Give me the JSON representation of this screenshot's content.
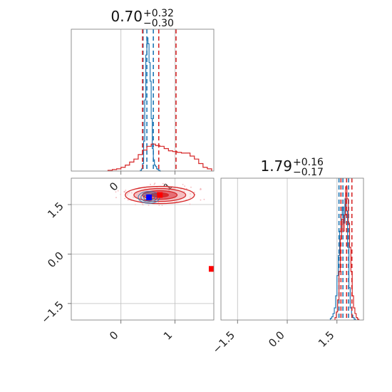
{
  "chart_data": {
    "type": "corner",
    "parameters": [
      "",
      ""
    ],
    "grid": true,
    "colors": {
      "blue": "#1f77b4",
      "red": "#d62728",
      "red_fill": "#e8727a",
      "red_light": "#f4b9bd",
      "marker_blue": "#0000ff",
      "marker_red": "#ff0000"
    },
    "panels": [
      {
        "id": "marginal-param1",
        "type": "histogram",
        "title": {
          "value": "0.70",
          "upper": "+0.32",
          "lower": "−0.30"
        },
        "xlim": [
          -0.92,
          1.72
        ],
        "xticks": [
          0,
          1
        ],
        "series": [
          {
            "name": "blue",
            "color": "#1f77b4",
            "bin_edges": [
              0.36,
              0.38,
              0.4,
              0.42,
              0.44,
              0.46,
              0.48,
              0.5,
              0.52,
              0.54,
              0.56,
              0.58,
              0.6,
              0.62,
              0.64,
              0.66,
              0.68,
              0.7,
              0.72,
              0.74
            ],
            "counts": [
              1,
              3,
              10,
              40,
              95,
              155,
              178,
              170,
              145,
              120,
              70,
              30,
              15,
              8,
              6,
              3,
              2,
              1,
              0
            ],
            "quantiles": [
              0.41,
              0.48,
              0.6
            ]
          },
          {
            "name": "red",
            "color": "#d62728",
            "bin_edges": [
              -0.24,
              -0.16,
              -0.08,
              0.0,
              0.08,
              0.16,
              0.24,
              0.32,
              0.4,
              0.48,
              0.56,
              0.64,
              0.72,
              0.8,
              0.88,
              0.96,
              1.04,
              1.12,
              1.2,
              1.28,
              1.36,
              1.44,
              1.52,
              1.6,
              1.68
            ],
            "counts": [
              1,
              2,
              3,
              5,
              8,
              12,
              16,
              22,
              28,
              33,
              36,
              34,
              33,
              30,
              27,
              26,
              25,
              24,
              24,
              20,
              16,
              10,
              5,
              3
            ],
            "quantiles": [
              0.4,
              0.7,
              1.02
            ]
          }
        ]
      },
      {
        "id": "joint-param1-param2",
        "type": "contour2d",
        "xlim": [
          -0.92,
          1.72
        ],
        "ylim": [
          -2.0,
          2.3
        ],
        "xticks": [
          0,
          1
        ],
        "yticks": [
          -1.5,
          0.0,
          1.5
        ],
        "yticklabels": [
          "−1.5",
          "0.0",
          "1.5"
        ],
        "series": [
          {
            "name": "red",
            "color": "#d62728",
            "center": [
              0.72,
              1.79
            ],
            "sigma": [
              0.32,
              0.13
            ],
            "levels": [
              0.5,
              1.0,
              1.5,
              2.0
            ]
          },
          {
            "name": "blue",
            "color": "#1f77b4",
            "center": [
              0.52,
              1.72
            ],
            "sigma": [
              0.1,
              0.09
            ],
            "levels": [
              0.5,
              1.0,
              1.5,
              2.0
            ]
          }
        ],
        "markers": [
          {
            "name": "marker-blue",
            "x": 0.52,
            "y": 1.72,
            "color": "#0000ff"
          },
          {
            "name": "marker-red",
            "x": 0.72,
            "y": 1.79,
            "color": "#ff0000"
          },
          {
            "name": "marker-red-edge",
            "x": 1.68,
            "y": -0.45,
            "color": "#ff0000"
          }
        ]
      },
      {
        "id": "marginal-param2",
        "type": "histogram",
        "title": {
          "value": "1.79",
          "upper": "+0.16",
          "lower": "−0.17"
        },
        "xlim": [
          -2.0,
          2.3
        ],
        "xticks": [
          -1.5,
          0.0,
          1.5
        ],
        "xticklabels": [
          "−1.5",
          "0.0",
          "1.5"
        ],
        "series": [
          {
            "name": "blue",
            "color": "#1f77b4",
            "bin_edges": [
              1.3,
              1.34,
              1.38,
              1.42,
              1.46,
              1.5,
              1.54,
              1.58,
              1.62,
              1.66,
              1.7,
              1.74,
              1.78,
              1.82,
              1.86,
              1.9,
              1.94,
              1.98,
              2.02,
              2.06
            ],
            "counts": [
              2,
              4,
              8,
              15,
              30,
              55,
              80,
              110,
              130,
              140,
              120,
              150,
              135,
              90,
              40,
              15,
              6,
              3,
              1
            ],
            "quantiles": [
              1.56,
              1.68,
              1.85
            ]
          },
          {
            "name": "red",
            "color": "#d62728",
            "bin_edges": [
              1.44,
              1.48,
              1.52,
              1.56,
              1.6,
              1.64,
              1.68,
              1.72,
              1.76,
              1.8,
              1.84,
              1.88,
              1.92,
              1.96,
              2.0,
              2.04,
              2.08,
              2.12,
              2.16
            ],
            "counts": [
              3,
              10,
              25,
              60,
              100,
              125,
              110,
              130,
              165,
              150,
              120,
              90,
              60,
              30,
              15,
              8,
              3,
              1
            ],
            "quantiles": [
              1.62,
              1.79,
              1.95
            ]
          }
        ]
      }
    ]
  }
}
